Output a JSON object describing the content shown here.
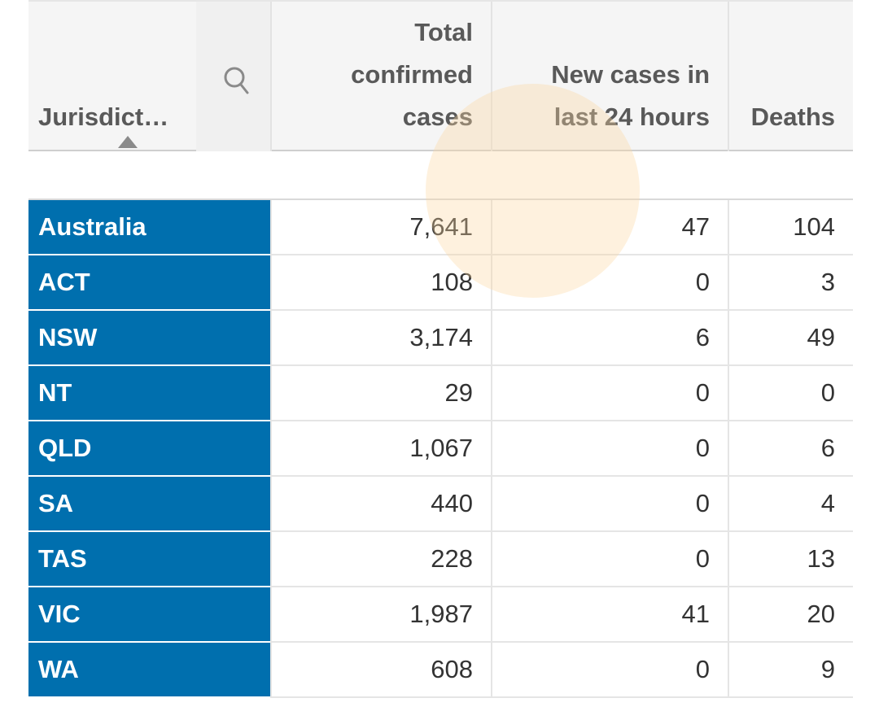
{
  "table": {
    "columns": [
      {
        "label": "Jurisdict…"
      },
      {
        "label": "Total\nconfirmed\ncases"
      },
      {
        "label": "New cases in\nlast 24 hours"
      },
      {
        "label": "Deaths"
      }
    ],
    "rows": [
      {
        "jurisdiction": "Australia",
        "total": "7,641",
        "new": "47",
        "deaths": "104"
      },
      {
        "jurisdiction": "ACT",
        "total": "108",
        "new": "0",
        "deaths": "3"
      },
      {
        "jurisdiction": "NSW",
        "total": "3,174",
        "new": "6",
        "deaths": "49"
      },
      {
        "jurisdiction": "NT",
        "total": "29",
        "new": "0",
        "deaths": "0"
      },
      {
        "jurisdiction": "QLD",
        "total": "1,067",
        "new": "0",
        "deaths": "6"
      },
      {
        "jurisdiction": "SA",
        "total": "440",
        "new": "0",
        "deaths": "4"
      },
      {
        "jurisdiction": "TAS",
        "total": "228",
        "new": "0",
        "deaths": "13"
      },
      {
        "jurisdiction": "VIC",
        "total": "1,987",
        "new": "41",
        "deaths": "20"
      },
      {
        "jurisdiction": "WA",
        "total": "608",
        "new": "0",
        "deaths": "9"
      }
    ]
  },
  "colors": {
    "selected_cell": "#006fae",
    "header_bg": "#f5f5f5",
    "touch_highlight": "#fdd6a0"
  },
  "icons": {
    "search": "search-icon",
    "sort": "sort-ascending-icon"
  }
}
